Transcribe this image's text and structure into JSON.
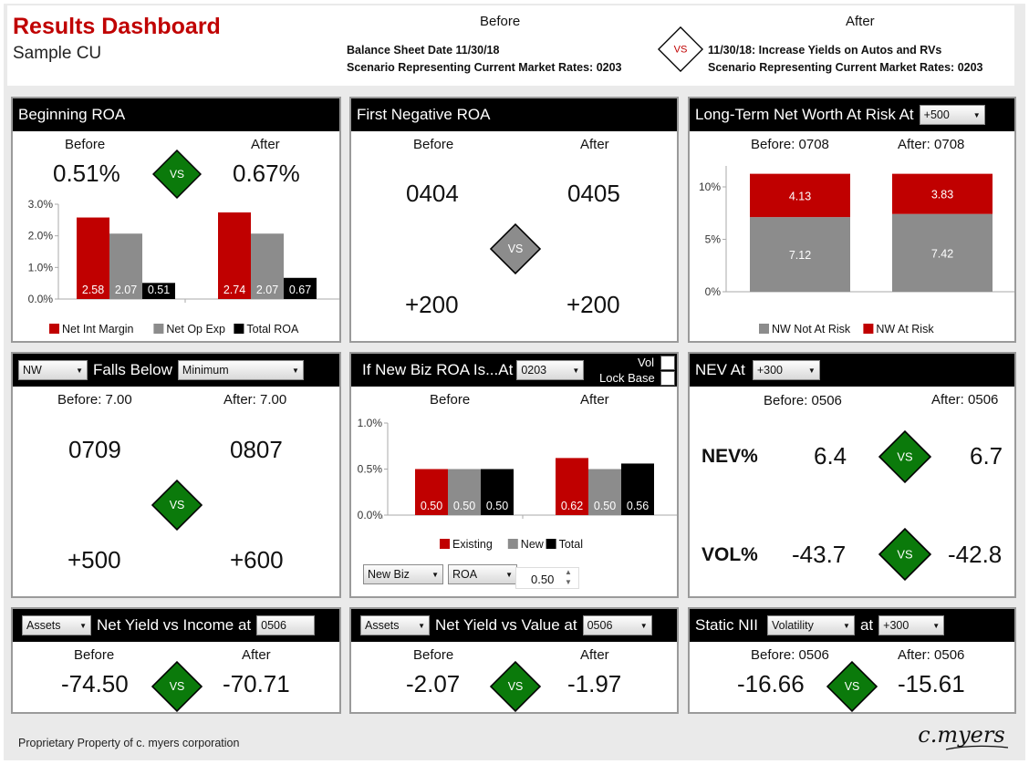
{
  "colors": {
    "red": "#c00000",
    "gray": "#8c8c8c",
    "black": "#000000",
    "green": "#0b7a0b"
  },
  "header": {
    "title": "Results Dashboard",
    "subtitle": "Sample CU",
    "before_caption": "Before",
    "after_caption": "After",
    "before_line1": "Balance Sheet Date 11/30/18",
    "before_line2": "Scenario Representing Current Market Rates: 0203",
    "vs": "VS",
    "after_line1": "11/30/18: Increase Yields on Autos and RVs",
    "after_line2": "Scenario Representing Current Market Rates: 0203"
  },
  "vs_label": "VS",
  "beginning_roa": {
    "title": "Beginning ROA",
    "before_label": "Before",
    "after_label": "After",
    "before_value": "0.51%",
    "after_value": "0.67%",
    "chart_data": {
      "type": "bar",
      "categories": [
        "Before",
        "After"
      ],
      "series": [
        {
          "name": "Net Int Margin",
          "values": [
            2.58,
            2.74
          ],
          "labels": [
            "2.58",
            "2.74"
          ],
          "color": "#c00000"
        },
        {
          "name": "Net Op Exp",
          "values": [
            2.07,
            2.07
          ],
          "labels": [
            "2.07",
            "2.07"
          ],
          "color": "#8c8c8c"
        },
        {
          "name": "Total ROA",
          "values": [
            0.51,
            0.67
          ],
          "labels": [
            "0.51",
            "0.67"
          ],
          "color": "#000000"
        }
      ],
      "yticks": [
        "0.0%",
        "1.0%",
        "2.0%",
        "3.0%"
      ],
      "ylim": [
        0,
        3
      ]
    }
  },
  "first_negative_roa": {
    "title": "First Negative ROA",
    "before_label": "Before",
    "after_label": "After",
    "before_value": "0404",
    "after_value": "0405",
    "before_shock": "+200",
    "after_shock": "+200"
  },
  "nw_at_risk": {
    "title": "Long-Term Net Worth At Risk At",
    "dropdown": "+500",
    "before_label": "Before: 0708",
    "after_label": "After: 0708",
    "chart_data": {
      "type": "bar",
      "stacked": true,
      "categories": [
        "Before",
        "After"
      ],
      "series": [
        {
          "name": "NW Not At Risk",
          "values": [
            7.12,
            7.42
          ],
          "labels": [
            "7.12",
            "7.42"
          ],
          "color": "#8c8c8c"
        },
        {
          "name": "NW At Risk",
          "values": [
            4.13,
            3.83
          ],
          "labels": [
            "4.13",
            "3.83"
          ],
          "color": "#c00000"
        }
      ],
      "yticks": [
        "0%",
        "5%",
        "10%"
      ],
      "ylim": [
        0,
        12
      ]
    }
  },
  "falls_below": {
    "dropdown1": "NW",
    "title": "Falls Below",
    "dropdown2": "Minimum",
    "before_label": "Before: 7.00",
    "after_label": "After: 7.00",
    "before_value": "0709",
    "after_value": "0807",
    "before_shock": "+500",
    "after_shock": "+600"
  },
  "new_biz_roa": {
    "title": "If New Biz ROA Is...At",
    "dropdown": "0203",
    "vol_label": "Vol",
    "lock_label": "Lock Base",
    "before_label": "Before",
    "after_label": "After",
    "chart_data": {
      "type": "bar",
      "categories": [
        "Before",
        "After"
      ],
      "series": [
        {
          "name": "Existing",
          "values": [
            0.5,
            0.62
          ],
          "labels": [
            "0.50",
            "0.62"
          ],
          "color": "#c00000"
        },
        {
          "name": "New",
          "values": [
            0.5,
            0.5
          ],
          "labels": [
            "0.50",
            "0.50"
          ],
          "color": "#8c8c8c"
        },
        {
          "name": "Total",
          "values": [
            0.5,
            0.56
          ],
          "labels": [
            "0.50",
            "0.56"
          ],
          "color": "#000000"
        }
      ],
      "yticks": [
        "0.0%",
        "0.5%",
        "1.0%"
      ],
      "ylim": [
        0,
        1
      ]
    },
    "select1": "New Biz",
    "select2": "ROA",
    "spin_value": "0.50"
  },
  "nev": {
    "title": "NEV At",
    "dropdown": "+300",
    "before_label": "Before: 0506",
    "after_label": "After: 0506",
    "nev_label": "NEV%",
    "nev_before": "6.4",
    "nev_after": "6.7",
    "vol_label": "VOL%",
    "vol_before": "-43.7",
    "vol_after": "-42.8"
  },
  "net_yield_income": {
    "dropdown1": "Assets",
    "title": "Net Yield vs Income at",
    "input": "0506",
    "before_label": "Before",
    "after_label": "After",
    "before_value": "-74.50",
    "after_value": "-70.71"
  },
  "net_yield_value": {
    "dropdown1": "Assets",
    "title": "Net Yield vs Value at",
    "dropdown2": "0506",
    "before_label": "Before",
    "after_label": "After",
    "before_value": "-2.07",
    "after_value": "-1.97"
  },
  "static_nii": {
    "title": "Static NII",
    "dropdown1": "Volatility",
    "at": "at",
    "dropdown2": "+300",
    "before_label": "Before: 0506",
    "after_label": "After: 0506",
    "before_value": "-16.66",
    "after_value": "-15.61"
  },
  "footer": {
    "text": "Proprietary Property of c. myers corporation",
    "logo": "c.myers"
  }
}
